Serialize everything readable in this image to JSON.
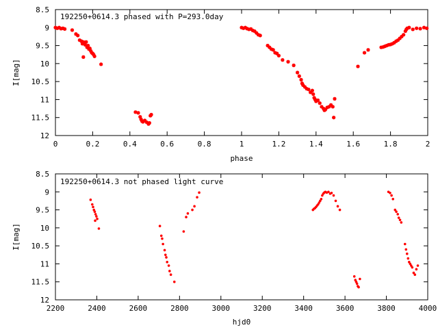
{
  "chart_data": [
    {
      "type": "scatter",
      "title": "192250+0614.3 phased with P=293.0day",
      "xlabel": "phase",
      "ylabel": "I[mag]",
      "xlim": [
        0,
        2
      ],
      "ylim": [
        8.5,
        12
      ],
      "y_inverted": true,
      "grid": false,
      "x_ticks": [
        "0",
        "0.2",
        "0.4",
        "0.6",
        "0.8",
        "1",
        "1.2",
        "1.4",
        "1.6",
        "1.8",
        "2"
      ],
      "y_ticks": [
        "8.5",
        "9",
        "9.5",
        "10",
        "10.5",
        "11",
        "11.5",
        "12"
      ],
      "marker_color": "#ff0000",
      "points": [
        [
          0.0,
          9.0
        ],
        [
          0.01,
          9.02
        ],
        [
          0.02,
          9.0
        ],
        [
          0.03,
          9.03
        ],
        [
          0.04,
          9.02
        ],
        [
          0.05,
          9.04
        ],
        [
          0.09,
          9.07
        ],
        [
          0.11,
          9.18
        ],
        [
          0.12,
          9.22
        ],
        [
          0.13,
          9.35
        ],
        [
          0.14,
          9.38
        ],
        [
          0.145,
          9.45
        ],
        [
          0.15,
          9.4
        ],
        [
          0.155,
          9.42
        ],
        [
          0.16,
          9.48
        ],
        [
          0.165,
          9.4
        ],
        [
          0.17,
          9.55
        ],
        [
          0.175,
          9.5
        ],
        [
          0.18,
          9.6
        ],
        [
          0.185,
          9.58
        ],
        [
          0.19,
          9.65
        ],
        [
          0.195,
          9.7
        ],
        [
          0.2,
          9.72
        ],
        [
          0.205,
          9.75
        ],
        [
          0.21,
          9.8
        ],
        [
          0.15,
          9.82
        ],
        [
          0.245,
          10.02
        ],
        [
          0.43,
          11.35
        ],
        [
          0.445,
          11.37
        ],
        [
          0.455,
          11.48
        ],
        [
          0.46,
          11.55
        ],
        [
          0.465,
          11.6
        ],
        [
          0.47,
          11.62
        ],
        [
          0.48,
          11.58
        ],
        [
          0.49,
          11.63
        ],
        [
          0.5,
          11.68
        ],
        [
          0.505,
          11.65
        ],
        [
          0.51,
          11.45
        ],
        [
          0.515,
          11.42
        ],
        [
          1.0,
          9.0
        ],
        [
          1.01,
          9.02
        ],
        [
          1.02,
          9.0
        ],
        [
          1.03,
          9.03
        ],
        [
          1.04,
          9.05
        ],
        [
          1.05,
          9.04
        ],
        [
          1.06,
          9.08
        ],
        [
          1.07,
          9.1
        ],
        [
          1.08,
          9.15
        ],
        [
          1.09,
          9.2
        ],
        [
          1.1,
          9.22
        ],
        [
          1.14,
          9.5
        ],
        [
          1.15,
          9.55
        ],
        [
          1.16,
          9.6
        ],
        [
          1.17,
          9.62
        ],
        [
          1.18,
          9.7
        ],
        [
          1.19,
          9.72
        ],
        [
          1.2,
          9.78
        ],
        [
          1.22,
          9.9
        ],
        [
          1.25,
          9.95
        ],
        [
          1.28,
          10.05
        ],
        [
          1.3,
          10.25
        ],
        [
          1.31,
          10.35
        ],
        [
          1.32,
          10.45
        ],
        [
          1.325,
          10.55
        ],
        [
          1.33,
          10.6
        ],
        [
          1.34,
          10.65
        ],
        [
          1.35,
          10.7
        ],
        [
          1.36,
          10.72
        ],
        [
          1.37,
          10.8
        ],
        [
          1.38,
          10.75
        ],
        [
          1.385,
          10.85
        ],
        [
          1.39,
          10.95
        ],
        [
          1.395,
          11.0
        ],
        [
          1.4,
          11.05
        ],
        [
          1.41,
          11.02
        ],
        [
          1.42,
          11.1
        ],
        [
          1.43,
          11.2
        ],
        [
          1.44,
          11.25
        ],
        [
          1.445,
          11.3
        ],
        [
          1.45,
          11.28
        ],
        [
          1.46,
          11.22
        ],
        [
          1.47,
          11.2
        ],
        [
          1.48,
          11.15
        ],
        [
          1.49,
          11.2
        ],
        [
          1.495,
          11.5
        ],
        [
          1.5,
          10.98
        ],
        [
          1.625,
          10.08
        ],
        [
          1.66,
          9.7
        ],
        [
          1.68,
          9.62
        ],
        [
          1.75,
          9.55
        ],
        [
          1.76,
          9.54
        ],
        [
          1.77,
          9.52
        ],
        [
          1.78,
          9.5
        ],
        [
          1.79,
          9.48
        ],
        [
          1.8,
          9.47
        ],
        [
          1.81,
          9.45
        ],
        [
          1.82,
          9.42
        ],
        [
          1.83,
          9.38
        ],
        [
          1.84,
          9.35
        ],
        [
          1.85,
          9.3
        ],
        [
          1.86,
          9.25
        ],
        [
          1.87,
          9.2
        ],
        [
          1.88,
          9.1
        ],
        [
          1.885,
          9.05
        ],
        [
          1.89,
          9.02
        ],
        [
          1.9,
          9.0
        ],
        [
          1.92,
          9.05
        ],
        [
          1.94,
          9.02
        ],
        [
          1.96,
          9.03
        ],
        [
          1.98,
          9.0
        ],
        [
          1.995,
          9.02
        ]
      ]
    },
    {
      "type": "scatter",
      "title": "192250+0614.3 not phased light curve",
      "xlabel": "hjd0",
      "ylabel": "I[mag]",
      "xlim": [
        2200,
        4000
      ],
      "ylim": [
        8.5,
        12
      ],
      "y_inverted": true,
      "grid": false,
      "x_ticks": [
        "2200",
        "2400",
        "2600",
        "2800",
        "3000",
        "3200",
        "3400",
        "3600",
        "3800",
        "4000"
      ],
      "y_ticks": [
        "8.5",
        "9",
        "9.5",
        "10",
        "10.5",
        "11",
        "11.5",
        "12"
      ],
      "marker_color": "#ff0000",
      "points": [
        [
          2370,
          9.22
        ],
        [
          2378,
          9.35
        ],
        [
          2382,
          9.42
        ],
        [
          2386,
          9.5
        ],
        [
          2390,
          9.55
        ],
        [
          2394,
          9.62
        ],
        [
          2398,
          9.68
        ],
        [
          2402,
          9.75
        ],
        [
          2392,
          9.8
        ],
        [
          2410,
          10.02
        ],
        [
          2705,
          9.95
        ],
        [
          2712,
          10.22
        ],
        [
          2716,
          10.3
        ],
        [
          2720,
          10.45
        ],
        [
          2728,
          10.62
        ],
        [
          2732,
          10.75
        ],
        [
          2736,
          10.82
        ],
        [
          2740,
          10.95
        ],
        [
          2748,
          11.05
        ],
        [
          2752,
          11.2
        ],
        [
          2758,
          11.3
        ],
        [
          2775,
          11.5
        ],
        [
          2820,
          10.1
        ],
        [
          2832,
          9.7
        ],
        [
          2840,
          9.6
        ],
        [
          2862,
          9.5
        ],
        [
          2872,
          9.4
        ],
        [
          2885,
          9.15
        ],
        [
          2895,
          9.02
        ],
        [
          3445,
          9.5
        ],
        [
          3450,
          9.47
        ],
        [
          3455,
          9.45
        ],
        [
          3460,
          9.42
        ],
        [
          3465,
          9.38
        ],
        [
          3470,
          9.35
        ],
        [
          3475,
          9.3
        ],
        [
          3480,
          9.25
        ],
        [
          3485,
          9.2
        ],
        [
          3490,
          9.1
        ],
        [
          3495,
          9.05
        ],
        [
          3500,
          9.02
        ],
        [
          3505,
          9.0
        ],
        [
          3512,
          9.02
        ],
        [
          3520,
          9.0
        ],
        [
          3528,
          9.05
        ],
        [
          3535,
          9.03
        ],
        [
          3545,
          9.1
        ],
        [
          3555,
          9.25
        ],
        [
          3565,
          9.4
        ],
        [
          3575,
          9.5
        ],
        [
          3645,
          11.35
        ],
        [
          3650,
          11.45
        ],
        [
          3654,
          11.5
        ],
        [
          3658,
          11.55
        ],
        [
          3662,
          11.62
        ],
        [
          3666,
          11.65
        ],
        [
          3672,
          11.42
        ],
        [
          3810,
          9.0
        ],
        [
          3818,
          9.03
        ],
        [
          3825,
          9.1
        ],
        [
          3832,
          9.2
        ],
        [
          3842,
          9.5
        ],
        [
          3848,
          9.55
        ],
        [
          3855,
          9.62
        ],
        [
          3860,
          9.72
        ],
        [
          3866,
          9.78
        ],
        [
          3872,
          9.85
        ],
        [
          3890,
          10.45
        ],
        [
          3895,
          10.6
        ],
        [
          3900,
          10.72
        ],
        [
          3905,
          10.85
        ],
        [
          3910,
          10.95
        ],
        [
          3915,
          11.0
        ],
        [
          3920,
          11.05
        ],
        [
          3925,
          11.1
        ],
        [
          3932,
          11.25
        ],
        [
          3938,
          11.3
        ],
        [
          3945,
          11.15
        ],
        [
          3952,
          11.05
        ]
      ]
    }
  ]
}
